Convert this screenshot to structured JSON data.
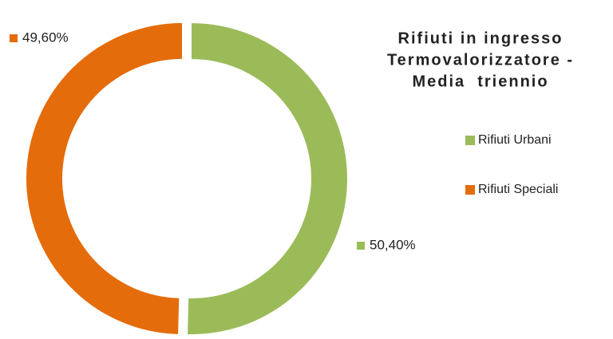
{
  "chart_data": {
    "type": "donut",
    "title": [
      "Rifiuti in ingresso",
      "Termovalorizzatore -",
      "Media  triennio"
    ],
    "categories": [
      "Rifiuti Urbani",
      "Rifiuti Speciali"
    ],
    "values": [
      50.4,
      49.6
    ],
    "value_labels": [
      "50,40%",
      "49,60%"
    ],
    "colors": [
      "#9bbb59",
      "#e46c0a"
    ],
    "legend": "right"
  }
}
